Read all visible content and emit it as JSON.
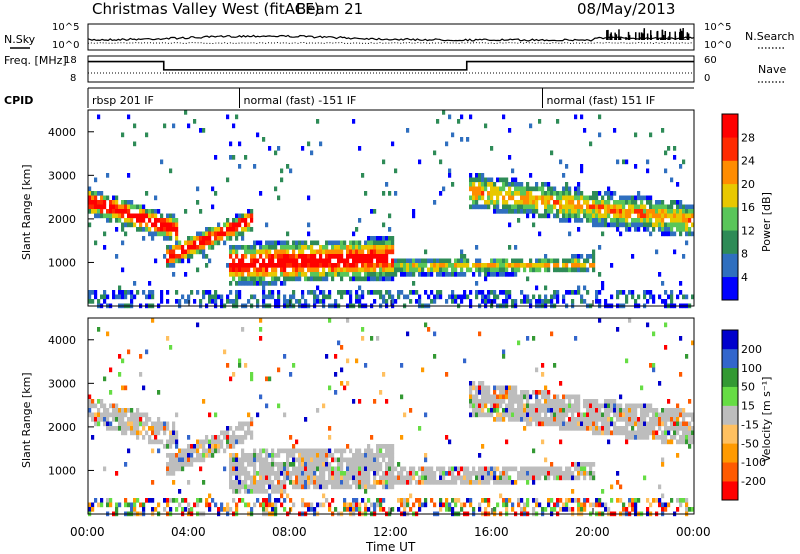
{
  "header": {
    "station": "Christmas Valley West (fitACF)",
    "beam": "Beam 21",
    "date": "08/May/2013"
  },
  "chart_data": [
    {
      "type": "line",
      "panel": "sky-noise",
      "ylabel": "N.Sky",
      "ylabel_right": "N.Search",
      "ylim_ticks": [
        "10^5",
        "10^0"
      ],
      "ylim_ticks_right": [
        "10^5",
        "10^0"
      ]
    },
    {
      "type": "line",
      "panel": "frequency",
      "ylabel": "Freq. [MHz]",
      "ylabel_right": "Nave",
      "y_ticks_left": [
        18,
        8
      ],
      "y_ticks_right": [
        60,
        0
      ]
    },
    {
      "type": "table",
      "panel": "cpid",
      "label": "CPID",
      "segments": [
        {
          "start_hour": 0,
          "label": "rbsp 201 IF"
        },
        {
          "start_hour": 6,
          "label": "normal (fast) -151 IF"
        },
        {
          "start_hour": 18,
          "label": "normal (fast) 151 IF"
        }
      ]
    },
    {
      "type": "heatmap",
      "panel": "power",
      "ylabel": "Slant Range [km]",
      "y_ticks": [
        1000,
        2000,
        3000,
        4000
      ],
      "colorbar_label": "Power [dB]",
      "colorbar_ticks": [
        "4",
        "8",
        "12",
        "16",
        "20",
        "24",
        "28"
      ],
      "colorbar_colors": [
        "#0000ff",
        "#2f6fbf",
        "#2e8b57",
        "#59c659",
        "#e8c800",
        "#ff8c00",
        "#ff2a00",
        "#ff0000"
      ]
    },
    {
      "type": "heatmap",
      "panel": "velocity",
      "ylabel": "Slant Range [km]",
      "y_ticks": [
        1000,
        2000,
        3000,
        4000
      ],
      "colorbar_label": "Velocity [m s⁻¹]",
      "colorbar_ticks": [
        "-200",
        "-100",
        "-50",
        "-15",
        "15",
        "50",
        "100",
        "200"
      ],
      "colorbar_colors": [
        "#ff0000",
        "#ff5a00",
        "#ff9a00",
        "#ffc060",
        "#bdbdbd",
        "#66dd44",
        "#339933",
        "#3366cc",
        "#0000cc"
      ]
    }
  ],
  "time_axis": {
    "label": "Time UT",
    "ticks": [
      "00:00",
      "04:00",
      "08:00",
      "12:00",
      "16:00",
      "20:00",
      "00:00"
    ],
    "tick_hours": [
      0,
      4,
      8,
      12,
      16,
      20,
      24
    ]
  }
}
